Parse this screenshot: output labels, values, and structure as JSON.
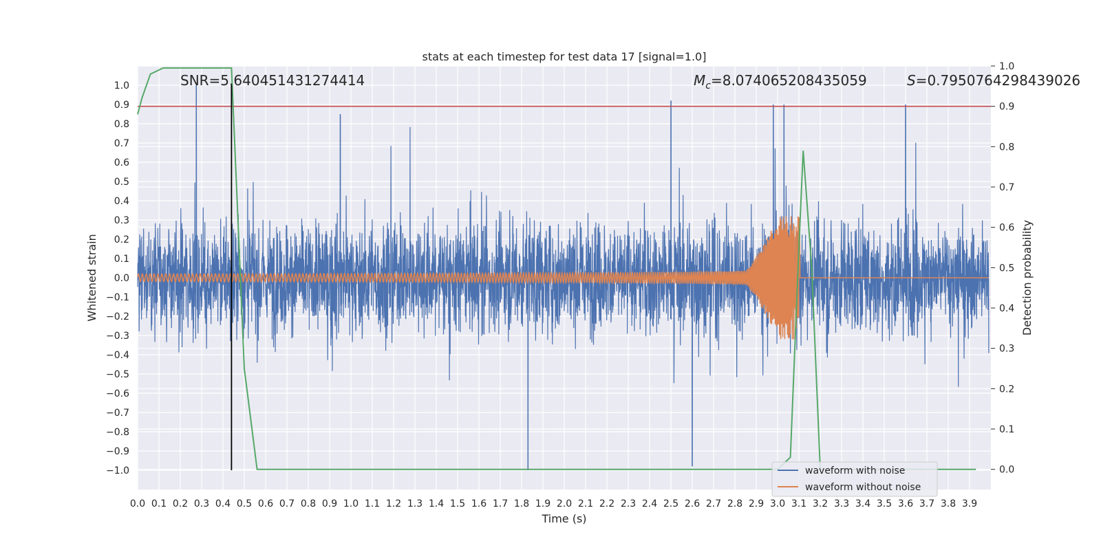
{
  "chart_data": {
    "type": "line",
    "title": "stats at each timestep for test data 17 [signal=1.0]",
    "xlabel": "Time (s)",
    "ylabel": "Whitened strain",
    "y2label": "Detection probability",
    "xlim": [
      0.0,
      4.0
    ],
    "ylim": [
      -1.1,
      1.1
    ],
    "y2lim": [
      -0.05,
      1.0
    ],
    "grid": true,
    "legend_position": "bottom-right",
    "xticks": [
      "0.0",
      "0.1",
      "0.2",
      "0.3",
      "0.4",
      "0.5",
      "0.6",
      "0.7",
      "0.8",
      "0.9",
      "1.0",
      "1.1",
      "1.2",
      "1.3",
      "1.4",
      "1.5",
      "1.6",
      "1.7",
      "1.8",
      "1.9",
      "2.0",
      "2.1",
      "2.2",
      "2.3",
      "2.4",
      "2.5",
      "2.6",
      "2.7",
      "2.8",
      "2.9",
      "3.0",
      "3.1",
      "3.2",
      "3.3",
      "3.4",
      "3.5",
      "3.6",
      "3.7",
      "3.8",
      "3.9"
    ],
    "yticks": [
      "−1.0",
      "−0.9",
      "−0.8",
      "−0.7",
      "−0.6",
      "−0.5",
      "−0.4",
      "−0.3",
      "−0.2",
      "−0.1",
      "0.0",
      "0.1",
      "0.2",
      "0.3",
      "0.4",
      "0.5",
      "0.6",
      "0.7",
      "0.8",
      "0.9",
      "1.0"
    ],
    "y2ticks": [
      "0.0",
      "0.1",
      "0.2",
      "0.3",
      "0.4",
      "0.5",
      "0.6",
      "0.7",
      "0.8",
      "0.9",
      "1.0"
    ],
    "annotations": {
      "snr": "SNR=5.640451431274414",
      "mc_symbol": "M",
      "mc_sub": "c",
      "mc_value": "=8.074065208435059",
      "s_symbol": "S",
      "s_value": "=0.7950764298439026"
    },
    "series": [
      {
        "name": "waveform with noise",
        "color": "#4c72b0",
        "style": "dense noise",
        "amplitude_typical": 0.45,
        "notable_peaks": [
          {
            "x": 0.275,
            "y": 1.0
          },
          {
            "x": 0.95,
            "y": 0.85
          },
          {
            "x": 1.83,
            "y": -1.0
          },
          {
            "x": 2.5,
            "y": 0.92
          },
          {
            "x": 2.98,
            "y": 0.9
          },
          {
            "x": 3.03,
            "y": 0.9
          },
          {
            "x": 3.6,
            "y": 0.9
          },
          {
            "x": 2.6,
            "y": -0.98
          }
        ]
      },
      {
        "name": "waveform without noise",
        "color": "#dd8452",
        "style": "chirp",
        "merger_time": 3.105,
        "amplitude_start": 0.02,
        "amplitude_peak": 0.32
      },
      {
        "color": "#55a868",
        "axis": "right",
        "x": [
          0.0,
          0.02,
          0.06,
          0.12,
          0.2,
          0.3,
          0.4,
          0.44,
          0.5,
          0.56,
          0.6,
          1.0,
          2.0,
          3.0,
          3.06,
          3.1,
          3.12,
          3.16,
          3.2,
          3.93
        ],
        "y": [
          0.88,
          0.92,
          0.98,
          0.995,
          0.995,
          0.995,
          0.995,
          0.995,
          0.25,
          0.0,
          0.0,
          0.0,
          0.0,
          0.0,
          0.03,
          0.55,
          0.79,
          0.5,
          0.0,
          0.0
        ]
      }
    ],
    "hlines": [
      {
        "axis": "right",
        "y": 0.9,
        "color": "#c44e52"
      }
    ],
    "vlines": [
      {
        "x": 0.44,
        "y_from": -1.0,
        "y_to": 1.0,
        "color": "#000000"
      }
    ]
  },
  "legend": {
    "noise_label": "waveform with noise",
    "clean_label": "waveform without noise"
  }
}
